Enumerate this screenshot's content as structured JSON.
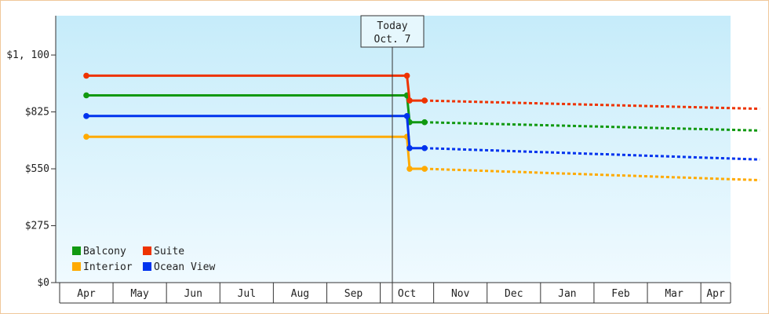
{
  "chart_data": {
    "type": "line",
    "y_ticks": [
      "$0",
      "$275",
      "$550",
      "$825",
      "$1, 100"
    ],
    "y_tick_values": [
      0,
      275,
      550,
      825,
      1100
    ],
    "ylim": [
      0,
      1290
    ],
    "x_labels": [
      "Apr",
      "May",
      "Jun",
      "Jul",
      "Aug",
      "Sep",
      "Oct",
      "Nov",
      "Dec",
      "Jan",
      "Feb",
      "Mar",
      "Apr"
    ],
    "today": {
      "line1": "Today",
      "line2": "Oct. 7"
    },
    "legend": {
      "placement": "bottom-left"
    },
    "series": [
      {
        "name": "Balcony",
        "color": "#119911",
        "history": [
          [
            0,
            905
          ],
          [
            6,
            905
          ],
          [
            6.05,
            775
          ],
          [
            6.33,
            775
          ]
        ],
        "forecast": [
          [
            6.33,
            775
          ],
          [
            12.6,
            735
          ]
        ]
      },
      {
        "name": "Suite",
        "color": "#ee3300",
        "history": [
          [
            0,
            1000
          ],
          [
            6,
            1000
          ],
          [
            6.05,
            880
          ],
          [
            6.33,
            880
          ]
        ],
        "forecast": [
          [
            6.33,
            880
          ],
          [
            12.6,
            840
          ]
        ]
      },
      {
        "name": "Interior",
        "color": "#ffaa00",
        "history": [
          [
            0,
            705
          ],
          [
            6,
            705
          ],
          [
            6.05,
            550
          ],
          [
            6.33,
            550
          ]
        ],
        "forecast": [
          [
            6.33,
            550
          ],
          [
            12.6,
            495
          ]
        ]
      },
      {
        "name": "Ocean View",
        "color": "#0033ee",
        "history": [
          [
            0,
            805
          ],
          [
            6,
            805
          ],
          [
            6.05,
            650
          ],
          [
            6.33,
            650
          ]
        ],
        "forecast": [
          [
            6.33,
            650
          ],
          [
            12.6,
            595
          ]
        ]
      }
    ]
  }
}
